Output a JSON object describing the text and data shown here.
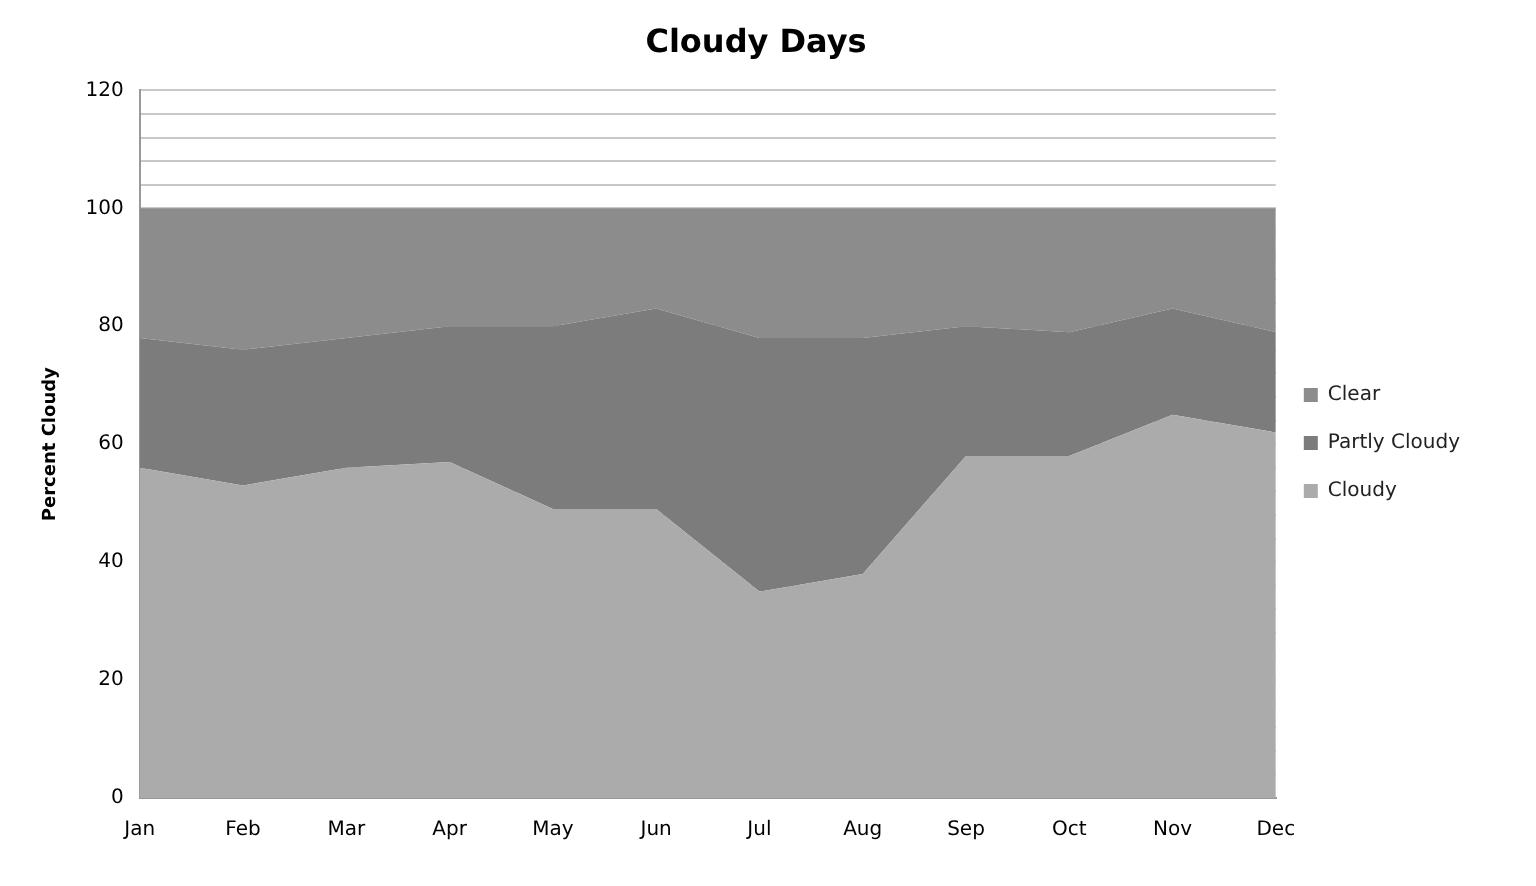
{
  "chart_data": {
    "type": "area",
    "title": "Cloudy Days",
    "ylabel": "Percent Cloudy",
    "stacked": true,
    "categories": [
      "Jan",
      "Feb",
      "Mar",
      "Apr",
      "May",
      "Jun",
      "Jul",
      "Aug",
      "Sep",
      "Oct",
      "Nov",
      "Dec"
    ],
    "series": [
      {
        "name": "Cloudy",
        "color": "#ababab",
        "values": [
          56,
          53,
          56,
          57,
          49,
          49,
          35,
          38,
          58,
          58,
          65,
          62
        ]
      },
      {
        "name": "Partly Cloudy",
        "color": "#7c7c7c",
        "values": [
          22,
          23,
          22,
          23,
          31,
          34,
          43,
          40,
          22,
          21,
          18,
          17
        ]
      },
      {
        "name": "Clear",
        "color": "#8c8c8c",
        "values": [
          22,
          24,
          22,
          20,
          20,
          17,
          22,
          22,
          20,
          21,
          17,
          21
        ]
      }
    ],
    "ylim": [
      0,
      120
    ],
    "yticks": [
      0,
      {
        "value": 4,
        "label": null
      },
      {
        "value": 8,
        "label": null
      },
      {
        "value": 12,
        "label": null
      },
      {
        "value": 16,
        "label": null
      },
      20,
      {
        "value": 24,
        "label": null
      },
      {
        "value": 28,
        "label": null
      },
      {
        "value": 32,
        "label": null
      },
      {
        "value": 36,
        "label": null
      },
      40,
      {
        "value": 44,
        "label": null
      },
      {
        "value": 48,
        "label": null
      },
      {
        "value": 52,
        "label": null
      },
      {
        "value": 56,
        "label": null
      },
      60,
      {
        "value": 64,
        "label": null
      },
      {
        "value": 68,
        "label": null
      },
      {
        "value": 72,
        "label": null
      },
      {
        "value": 76,
        "label": null
      },
      80,
      {
        "value": 84,
        "label": null
      },
      {
        "value": 88,
        "label": null
      },
      {
        "value": 92,
        "label": null
      },
      {
        "value": 96,
        "label": null
      },
      100,
      {
        "value": 104,
        "label": null
      },
      {
        "value": 108,
        "label": null
      },
      {
        "value": 112,
        "label": null
      },
      {
        "value": 116,
        "label": null
      },
      120
    ],
    "grid": "y",
    "legend": "right"
  }
}
